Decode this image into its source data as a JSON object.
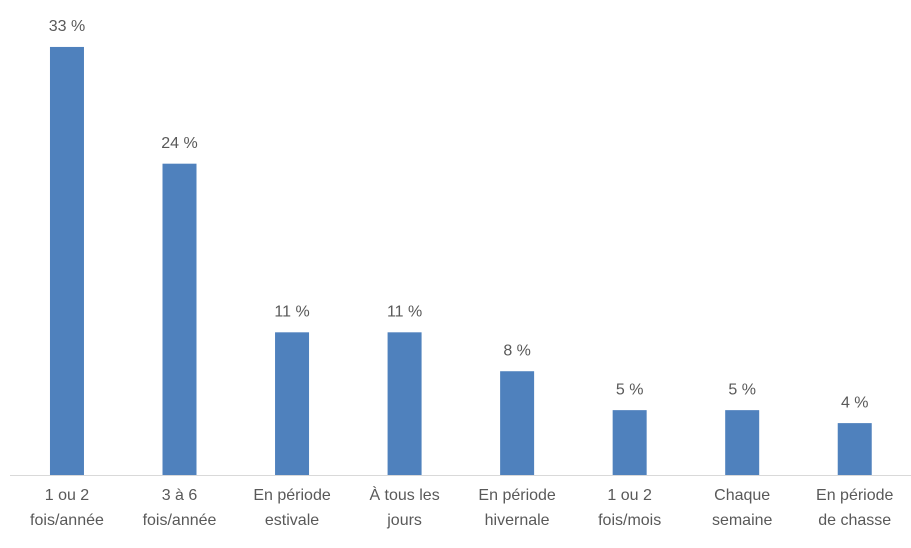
{
  "chart_data": {
    "type": "bar",
    "categories": [
      [
        "1 ou 2",
        "fois/année"
      ],
      [
        "3 à 6",
        "fois/année"
      ],
      [
        "En période",
        "estivale"
      ],
      [
        "À tous les",
        "jours"
      ],
      [
        "En période",
        "hivernale"
      ],
      [
        "1 ou 2",
        "fois/mois"
      ],
      [
        "Chaque",
        "semaine"
      ],
      [
        "En période",
        "de chasse"
      ]
    ],
    "values": [
      33,
      24,
      11,
      11,
      8,
      5,
      5,
      4
    ],
    "value_labels": [
      "33 %",
      "24 %",
      "11 %",
      "11 %",
      "8 %",
      "5 %",
      "5 %",
      "4 %"
    ],
    "color": "#4f81bd",
    "ylim": [
      0,
      35
    ]
  }
}
